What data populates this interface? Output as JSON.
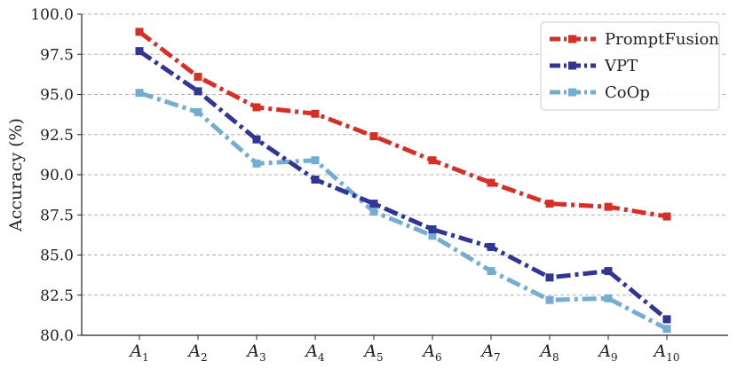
{
  "chart_data": {
    "type": "line",
    "title": "",
    "xlabel": "",
    "ylabel": "Accuracy (%)",
    "categories": [
      {
        "base": "A",
        "sub": "1"
      },
      {
        "base": "A",
        "sub": "2"
      },
      {
        "base": "A",
        "sub": "3"
      },
      {
        "base": "A",
        "sub": "4"
      },
      {
        "base": "A",
        "sub": "5"
      },
      {
        "base": "A",
        "sub": "6"
      },
      {
        "base": "A",
        "sub": "7"
      },
      {
        "base": "A",
        "sub": "8"
      },
      {
        "base": "A",
        "sub": "9"
      },
      {
        "base": "A",
        "sub": "10"
      }
    ],
    "ylim": [
      80.0,
      100.0
    ],
    "yticks": [
      80.0,
      82.5,
      85.0,
      87.5,
      90.0,
      92.5,
      95.0,
      97.5,
      100.0
    ],
    "ytick_labels": [
      "80.0",
      "82.5",
      "85.0",
      "87.5",
      "90.0",
      "92.5",
      "95.0",
      "97.5",
      "100.0"
    ],
    "grid": "horizontal dashed",
    "legend_position": "top-right",
    "series": [
      {
        "name": "PromptFusion",
        "color": "#d62f27",
        "line_style": "dash-dot",
        "marker": "square",
        "values": [
          98.9,
          96.1,
          94.2,
          93.8,
          92.4,
          90.9,
          89.5,
          88.2,
          88.0,
          87.4
        ]
      },
      {
        "name": "VPT",
        "color": "#313695",
        "line_style": "dash-dot",
        "marker": "square",
        "values": [
          97.7,
          95.2,
          92.2,
          89.7,
          88.2,
          86.6,
          85.5,
          83.6,
          84.0,
          81.0
        ]
      },
      {
        "name": "CoOp",
        "color": "#74add1",
        "line_style": "dash-dot",
        "marker": "square",
        "values": [
          95.1,
          93.9,
          90.7,
          90.9,
          87.7,
          86.2,
          84.0,
          82.2,
          82.3,
          80.4
        ]
      }
    ]
  }
}
